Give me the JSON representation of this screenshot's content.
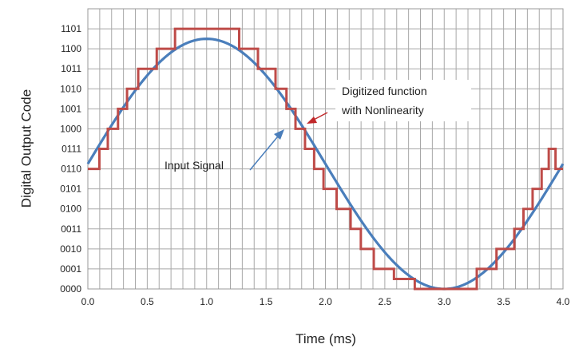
{
  "chart_data": {
    "type": "line",
    "title": "",
    "xlabel": "Time (ms)",
    "ylabel": "Digital Output Code",
    "xlim": [
      0,
      4
    ],
    "ylim": [
      0,
      14
    ],
    "x_ticks": [
      0.0,
      0.5,
      1.0,
      1.5,
      2.0,
      2.5,
      3.0,
      3.5,
      4.0
    ],
    "x_tick_labels": [
      "0.0",
      "0.5",
      "1.0",
      "1.5",
      "2.0",
      "2.5",
      "3.0",
      "3.5",
      "4.0"
    ],
    "y_tick_labels": [
      "0000",
      "0001",
      "0010",
      "0011",
      "0100",
      "0101",
      "0110",
      "0111",
      "1000",
      "1001",
      "1010",
      "1011",
      "1100",
      "1101"
    ],
    "grid": true,
    "series": [
      {
        "name": "Input Signal",
        "kind": "sine",
        "color": "#4a7ebb",
        "amplitude": 6.25,
        "offset": 6.25,
        "period_ms": 4,
        "peak_x": 1.0,
        "trough_x": 3.0,
        "samples": 161
      },
      {
        "name": "Digitized function with Nonlinearity",
        "kind": "step",
        "color": "#be4b48",
        "x": [
          0,
          0.097,
          0.168,
          0.254,
          0.33,
          0.424,
          0.58,
          0.734,
          1.274,
          1.432,
          1.58,
          1.672,
          1.748,
          1.828,
          1.905,
          1.984,
          2.094,
          2.212,
          2.298,
          2.407,
          2.577,
          2.752,
          3.274,
          3.44,
          3.59,
          3.667,
          3.744,
          3.82,
          3.88,
          3.937,
          4.0
        ],
        "y": [
          6,
          7,
          8,
          9,
          10,
          11,
          12,
          13,
          12,
          11,
          10,
          9,
          8,
          7,
          6,
          5,
          4,
          3,
          2,
          1,
          0.5,
          0,
          1,
          2,
          3,
          4,
          5,
          6,
          7,
          6,
          6
        ]
      }
    ],
    "annotations": [
      {
        "text": "Input Signal",
        "arrow_color": "#4a7ebb"
      },
      {
        "text_lines": [
          "Digitized function",
          "with Nonlinearity"
        ],
        "arrow_color": "#c0282a"
      }
    ]
  }
}
